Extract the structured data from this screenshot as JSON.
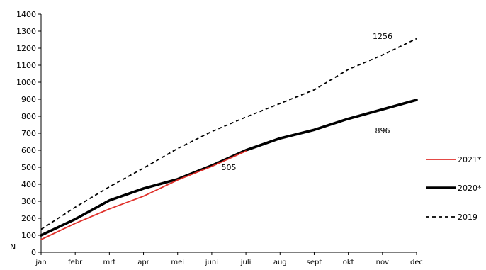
{
  "chart_data": {
    "type": "line",
    "title": "",
    "xlabel": "",
    "ylabel": "N",
    "ylim": [
      0,
      1400
    ],
    "yticks": [
      0,
      100,
      200,
      300,
      400,
      500,
      600,
      700,
      800,
      900,
      1000,
      1100,
      1200,
      1300,
      1400
    ],
    "categories": [
      "jan",
      "febr",
      "mrt",
      "apr",
      "mei",
      "juni",
      "juli",
      "aug",
      "sept",
      "okt",
      "nov",
      "dec"
    ],
    "grid": false,
    "legend_position": "right",
    "series": [
      {
        "name": "2021*",
        "color": "#e0312b",
        "style": "solid",
        "width": "medium",
        "values": [
          75,
          170,
          255,
          330,
          425,
          505,
          595,
          null,
          null,
          null,
          null,
          null
        ]
      },
      {
        "name": "2020*",
        "color": "#000000",
        "style": "solid",
        "width": "thick",
        "values": [
          100,
          195,
          305,
          375,
          430,
          510,
          600,
          670,
          720,
          785,
          840,
          896
        ]
      },
      {
        "name": "2019",
        "color": "#000000",
        "style": "dashed",
        "width": "medium",
        "values": [
          135,
          265,
          385,
          495,
          610,
          710,
          795,
          875,
          955,
          1075,
          1160,
          1256
        ]
      }
    ],
    "annotations": [
      "1256",
      "896",
      "505"
    ]
  }
}
